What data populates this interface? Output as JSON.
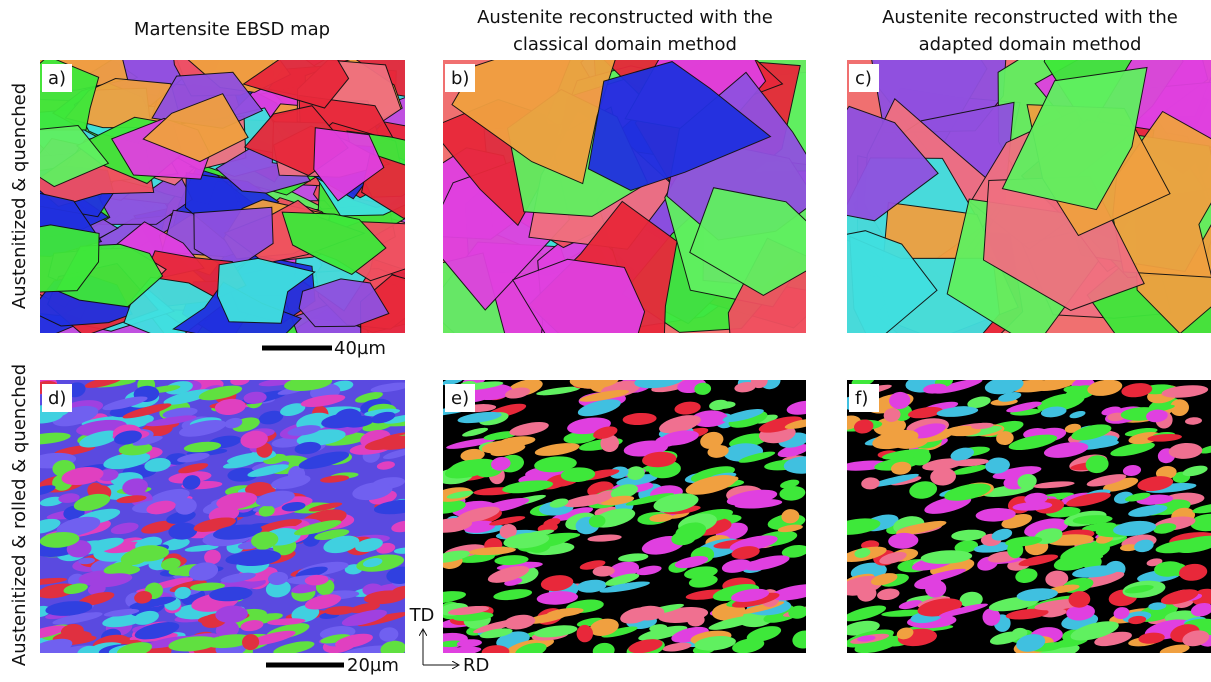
{
  "columns": [
    {
      "lines": [
        "Martensite EBSD map"
      ]
    },
    {
      "lines": [
        "Austenite reconstructed with the",
        "classical domain method"
      ]
    },
    {
      "lines": [
        "Austenite reconstructed with the",
        "adapted domain method"
      ]
    }
  ],
  "rows": [
    "Austenitized & quenched",
    "Austenitized & rolled & quenched"
  ],
  "panels": [
    "a)",
    "b)",
    "c)",
    "d)",
    "e)",
    "f)"
  ],
  "scale_bars": [
    "40µm",
    "20µm"
  ],
  "axes": {
    "vertical": "TD",
    "horizontal": "RD"
  }
}
